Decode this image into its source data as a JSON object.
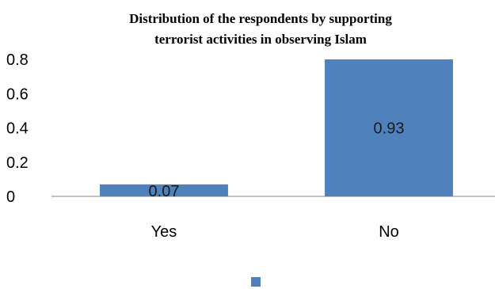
{
  "chart_data": {
    "type": "bar",
    "title_lines": [
      "Distribution of the respondents by supporting",
      "terrorist activities in observing Islam"
    ],
    "categories": [
      "Yes",
      "No"
    ],
    "values": [
      0.07,
      0.93
    ],
    "data_labels": [
      "0.07",
      "0.93"
    ],
    "y_ticks": [
      "0",
      "0.2",
      "0.4",
      "0.6",
      "0.8"
    ],
    "ylim": [
      0,
      0.8
    ],
    "grid": false,
    "legend_position": "bottom",
    "bar_color": "#4F81BD"
  }
}
